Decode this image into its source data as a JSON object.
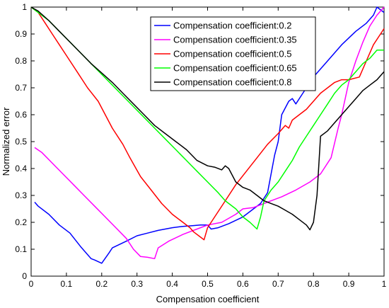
{
  "chart_data": {
    "type": "line",
    "title": "",
    "xlabel": "Compensation coefficient",
    "ylabel": "Normalized error",
    "xlim": [
      0,
      1
    ],
    "ylim": [
      0,
      1
    ],
    "xticks": [
      0,
      0.1,
      0.2,
      0.3,
      0.4,
      0.5,
      0.6,
      0.7,
      0.8,
      0.9,
      1
    ],
    "xtick_labels": [
      "0",
      "0.1",
      "0.2",
      "0.3",
      "0.4",
      "0.5",
      "0.6",
      "0.7",
      "0.8",
      "0.9",
      "1"
    ],
    "yticks": [
      0,
      0.1,
      0.2,
      0.3,
      0.4,
      0.5,
      0.6,
      0.7,
      0.8,
      0.9,
      1
    ],
    "ytick_labels": [
      "0",
      "0.1",
      "0.2",
      "0.3",
      "0.4",
      "0.5",
      "0.6",
      "0.7",
      "0.8",
      "0.9",
      "1"
    ],
    "grid": false,
    "legend_position": "top-right",
    "series": [
      {
        "name": "Compensation coefficient:0.2",
        "color": "#0000ff",
        "points": [
          [
            0.01,
            0.275
          ],
          [
            0.02,
            0.26
          ],
          [
            0.05,
            0.23
          ],
          [
            0.08,
            0.19
          ],
          [
            0.11,
            0.16
          ],
          [
            0.14,
            0.11
          ],
          [
            0.17,
            0.065
          ],
          [
            0.18,
            0.06
          ],
          [
            0.2,
            0.048
          ],
          [
            0.22,
            0.085
          ],
          [
            0.23,
            0.105
          ],
          [
            0.27,
            0.13
          ],
          [
            0.3,
            0.15
          ],
          [
            0.33,
            0.16
          ],
          [
            0.36,
            0.17
          ],
          [
            0.4,
            0.18
          ],
          [
            0.43,
            0.185
          ],
          [
            0.46,
            0.188
          ],
          [
            0.48,
            0.19
          ],
          [
            0.5,
            0.19
          ],
          [
            0.51,
            0.175
          ],
          [
            0.53,
            0.18
          ],
          [
            0.56,
            0.195
          ],
          [
            0.6,
            0.22
          ],
          [
            0.63,
            0.25
          ],
          [
            0.65,
            0.27
          ],
          [
            0.67,
            0.31
          ],
          [
            0.69,
            0.45
          ],
          [
            0.7,
            0.5
          ],
          [
            0.71,
            0.6
          ],
          [
            0.73,
            0.65
          ],
          [
            0.74,
            0.66
          ],
          [
            0.75,
            0.64
          ],
          [
            0.77,
            0.68
          ],
          [
            0.8,
            0.74
          ],
          [
            0.84,
            0.8
          ],
          [
            0.88,
            0.86
          ],
          [
            0.92,
            0.91
          ],
          [
            0.95,
            0.94
          ],
          [
            0.97,
            0.97
          ],
          [
            0.98,
            1.0
          ],
          [
            1.0,
            0.98
          ]
        ]
      },
      {
        "name": "Compensation coefficient:0.35",
        "color": "#ff00ff",
        "points": [
          [
            0.01,
            0.478
          ],
          [
            0.03,
            0.46
          ],
          [
            0.06,
            0.42
          ],
          [
            0.09,
            0.38
          ],
          [
            0.12,
            0.34
          ],
          [
            0.15,
            0.3
          ],
          [
            0.18,
            0.26
          ],
          [
            0.21,
            0.22
          ],
          [
            0.24,
            0.18
          ],
          [
            0.27,
            0.14
          ],
          [
            0.29,
            0.1
          ],
          [
            0.31,
            0.073
          ],
          [
            0.33,
            0.07
          ],
          [
            0.35,
            0.065
          ],
          [
            0.36,
            0.105
          ],
          [
            0.39,
            0.13
          ],
          [
            0.43,
            0.155
          ],
          [
            0.47,
            0.175
          ],
          [
            0.5,
            0.19
          ],
          [
            0.54,
            0.2
          ],
          [
            0.58,
            0.23
          ],
          [
            0.6,
            0.25
          ],
          [
            0.63,
            0.255
          ],
          [
            0.65,
            0.265
          ],
          [
            0.68,
            0.28
          ],
          [
            0.71,
            0.295
          ],
          [
            0.75,
            0.32
          ],
          [
            0.79,
            0.35
          ],
          [
            0.82,
            0.38
          ],
          [
            0.85,
            0.44
          ],
          [
            0.87,
            0.55
          ],
          [
            0.88,
            0.6
          ],
          [
            0.9,
            0.72
          ],
          [
            0.92,
            0.8
          ],
          [
            0.94,
            0.87
          ],
          [
            0.96,
            0.93
          ],
          [
            0.98,
            0.97
          ],
          [
            1.0,
            1.0
          ]
        ]
      },
      {
        "name": "Compensation coefficient:0.5",
        "color": "#ff0000",
        "points": [
          [
            0.0,
            1.0
          ],
          [
            0.02,
            0.98
          ],
          [
            0.04,
            0.94
          ],
          [
            0.06,
            0.9
          ],
          [
            0.08,
            0.86
          ],
          [
            0.1,
            0.82
          ],
          [
            0.13,
            0.76
          ],
          [
            0.16,
            0.7
          ],
          [
            0.19,
            0.65
          ],
          [
            0.21,
            0.6
          ],
          [
            0.23,
            0.55
          ],
          [
            0.26,
            0.49
          ],
          [
            0.28,
            0.44
          ],
          [
            0.31,
            0.37
          ],
          [
            0.34,
            0.32
          ],
          [
            0.37,
            0.27
          ],
          [
            0.4,
            0.23
          ],
          [
            0.43,
            0.2
          ],
          [
            0.45,
            0.18
          ],
          [
            0.46,
            0.165
          ],
          [
            0.48,
            0.145
          ],
          [
            0.49,
            0.135
          ],
          [
            0.5,
            0.18
          ],
          [
            0.52,
            0.22
          ],
          [
            0.55,
            0.28
          ],
          [
            0.58,
            0.34
          ],
          [
            0.61,
            0.39
          ],
          [
            0.64,
            0.44
          ],
          [
            0.67,
            0.49
          ],
          [
            0.7,
            0.53
          ],
          [
            0.72,
            0.56
          ],
          [
            0.73,
            0.55
          ],
          [
            0.74,
            0.58
          ],
          [
            0.76,
            0.6
          ],
          [
            0.78,
            0.62
          ],
          [
            0.8,
            0.65
          ],
          [
            0.82,
            0.68
          ],
          [
            0.84,
            0.7
          ],
          [
            0.86,
            0.72
          ],
          [
            0.88,
            0.73
          ],
          [
            0.9,
            0.73
          ],
          [
            0.93,
            0.74
          ],
          [
            0.95,
            0.8
          ],
          [
            0.97,
            0.86
          ],
          [
            0.99,
            0.9
          ],
          [
            1.0,
            0.92
          ]
        ]
      },
      {
        "name": "Compensation coefficient:0.65",
        "color": "#00ff00",
        "points": [
          [
            0.0,
            1.0
          ],
          [
            0.02,
            0.98
          ],
          [
            0.05,
            0.95
          ],
          [
            0.08,
            0.91
          ],
          [
            0.11,
            0.87
          ],
          [
            0.14,
            0.83
          ],
          [
            0.17,
            0.79
          ],
          [
            0.2,
            0.75
          ],
          [
            0.23,
            0.71
          ],
          [
            0.26,
            0.67
          ],
          [
            0.29,
            0.63
          ],
          [
            0.32,
            0.59
          ],
          [
            0.35,
            0.55
          ],
          [
            0.38,
            0.51
          ],
          [
            0.41,
            0.47
          ],
          [
            0.44,
            0.43
          ],
          [
            0.47,
            0.39
          ],
          [
            0.5,
            0.35
          ],
          [
            0.53,
            0.31
          ],
          [
            0.55,
            0.28
          ],
          [
            0.58,
            0.25
          ],
          [
            0.6,
            0.22
          ],
          [
            0.62,
            0.2
          ],
          [
            0.64,
            0.175
          ],
          [
            0.65,
            0.22
          ],
          [
            0.66,
            0.28
          ],
          [
            0.68,
            0.32
          ],
          [
            0.7,
            0.35
          ],
          [
            0.72,
            0.39
          ],
          [
            0.74,
            0.43
          ],
          [
            0.76,
            0.48
          ],
          [
            0.78,
            0.52
          ],
          [
            0.8,
            0.56
          ],
          [
            0.82,
            0.6
          ],
          [
            0.84,
            0.64
          ],
          [
            0.86,
            0.68
          ],
          [
            0.88,
            0.71
          ],
          [
            0.9,
            0.73
          ],
          [
            0.92,
            0.76
          ],
          [
            0.94,
            0.79
          ],
          [
            0.96,
            0.81
          ],
          [
            0.98,
            0.84
          ],
          [
            1.0,
            0.84
          ]
        ]
      },
      {
        "name": "Compensation coefficient:0.8",
        "color": "#000000",
        "points": [
          [
            0.0,
            1.0
          ],
          [
            0.02,
            0.985
          ],
          [
            0.05,
            0.95
          ],
          [
            0.08,
            0.91
          ],
          [
            0.11,
            0.87
          ],
          [
            0.14,
            0.83
          ],
          [
            0.17,
            0.79
          ],
          [
            0.2,
            0.755
          ],
          [
            0.23,
            0.72
          ],
          [
            0.26,
            0.68
          ],
          [
            0.29,
            0.64
          ],
          [
            0.32,
            0.6
          ],
          [
            0.35,
            0.56
          ],
          [
            0.38,
            0.53
          ],
          [
            0.41,
            0.5
          ],
          [
            0.44,
            0.47
          ],
          [
            0.47,
            0.43
          ],
          [
            0.5,
            0.41
          ],
          [
            0.52,
            0.405
          ],
          [
            0.54,
            0.395
          ],
          [
            0.55,
            0.41
          ],
          [
            0.56,
            0.4
          ],
          [
            0.58,
            0.35
          ],
          [
            0.6,
            0.33
          ],
          [
            0.62,
            0.32
          ],
          [
            0.64,
            0.3
          ],
          [
            0.66,
            0.28
          ],
          [
            0.68,
            0.27
          ],
          [
            0.7,
            0.26
          ],
          [
            0.72,
            0.245
          ],
          [
            0.74,
            0.23
          ],
          [
            0.76,
            0.21
          ],
          [
            0.78,
            0.19
          ],
          [
            0.79,
            0.172
          ],
          [
            0.8,
            0.2
          ],
          [
            0.81,
            0.3
          ],
          [
            0.82,
            0.52
          ],
          [
            0.84,
            0.54
          ],
          [
            0.86,
            0.57
          ],
          [
            0.88,
            0.6
          ],
          [
            0.9,
            0.63
          ],
          [
            0.92,
            0.66
          ],
          [
            0.94,
            0.69
          ],
          [
            0.96,
            0.71
          ],
          [
            0.98,
            0.73
          ],
          [
            1.0,
            0.76
          ]
        ]
      }
    ]
  }
}
